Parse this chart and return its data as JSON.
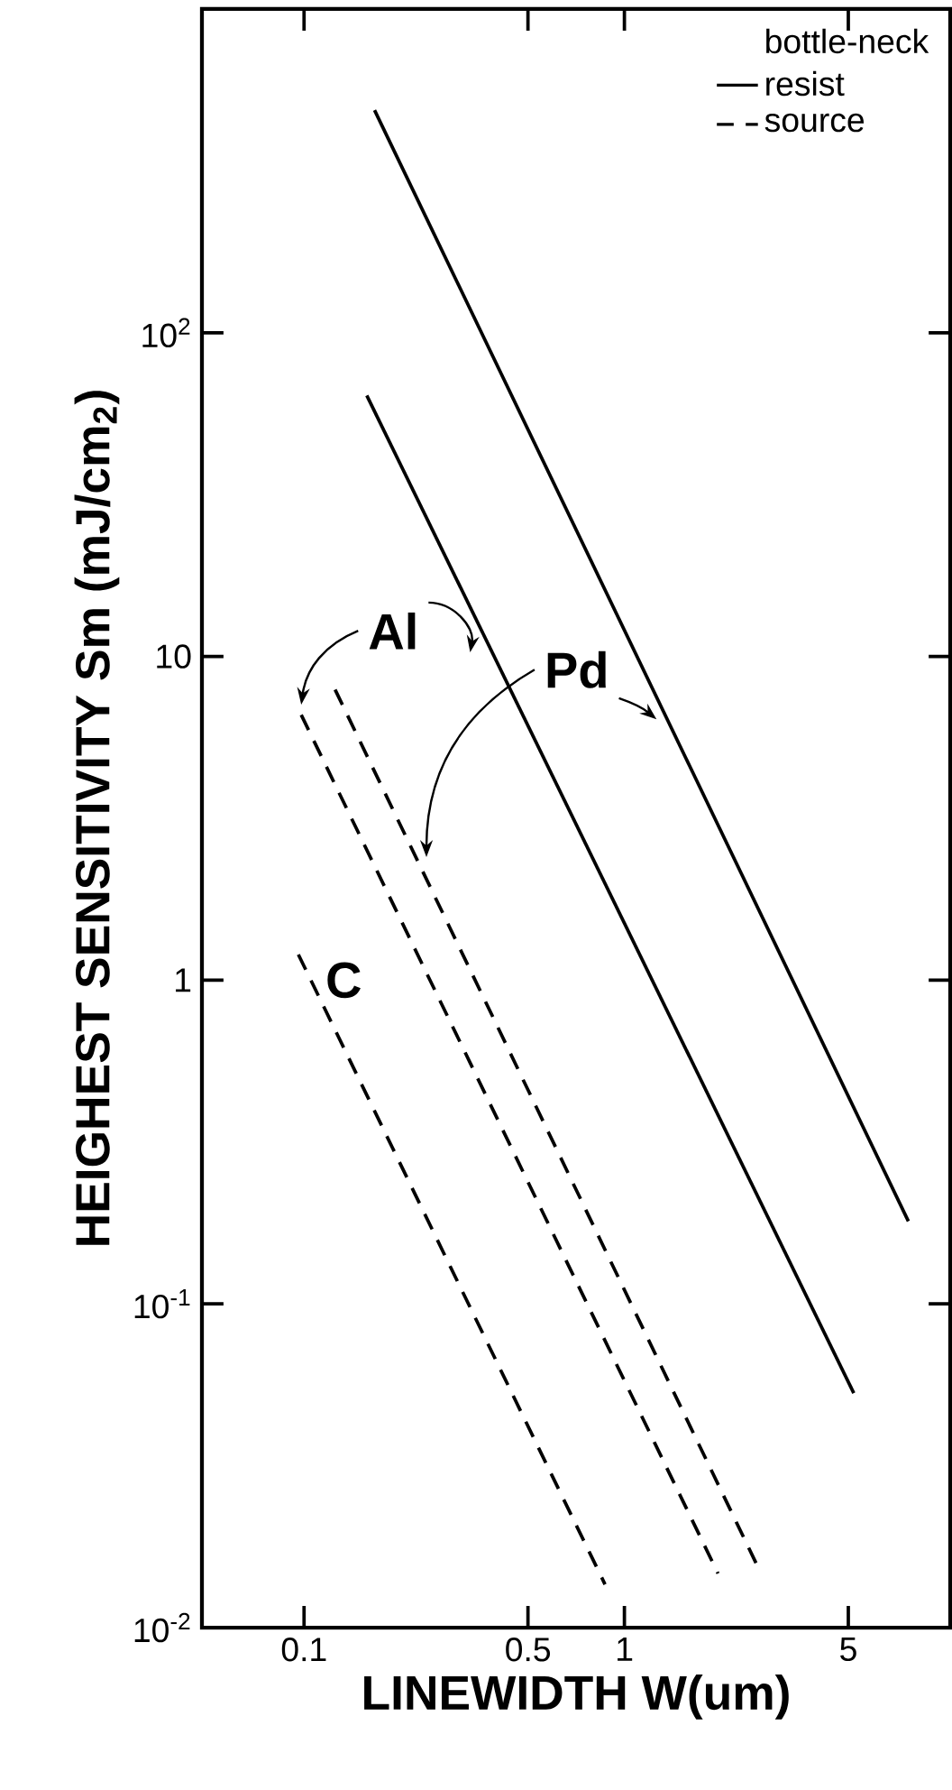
{
  "chart_data": {
    "type": "line",
    "xlabel": "LINEWIDTH   W(um)",
    "ylabel": "HEIGHEST SENSITIVITY   Sm (mJ/cm$_{2}$)",
    "legend_title": "bottle-neck",
    "log": "xy",
    "xlim": [
      0.048,
      10.4
    ],
    "ylim": [
      0.01,
      1000
    ],
    "xticks": [
      0.1,
      0.5,
      1,
      5
    ],
    "yticks": [
      {
        "value": 0.01,
        "label": "10$^{-2}$"
      },
      {
        "value": 0.1,
        "label": "10$^{-1}$"
      },
      1,
      10,
      {
        "value": 100,
        "label": "10$^{2}$"
      }
    ],
    "legend": "top right",
    "marker": "none",
    "grid": false,
    "series": [
      {
        "name": "resist",
        "color": "#000000",
        "line_style": "solid",
        "x": [
          0.166,
          7.7
        ],
        "values": [
          487,
          0.18
        ]
      },
      {
        "color": "#000000",
        "line_style": "solid",
        "x": [
          0.157,
          5.2
        ],
        "values": [
          64,
          0.053
        ]
      },
      {
        "name": "source",
        "color": "#000000",
        "line_style": "dashed",
        "x": [
          0.098,
          1.96
        ],
        "values": [
          6.6,
          0.0147
        ]
      },
      {
        "color": "#000000",
        "line_style": "dashed",
        "x": [
          0.125,
          2.67
        ],
        "values": [
          7.9,
          0.0147
        ]
      },
      {
        "color": "#000000",
        "line_style": "dashed",
        "x": [
          0.096,
          0.87
        ],
        "values": [
          1.2,
          0.0136
        ]
      }
    ],
    "annotations": [
      "Al",
      "Pd",
      "C"
    ]
  }
}
